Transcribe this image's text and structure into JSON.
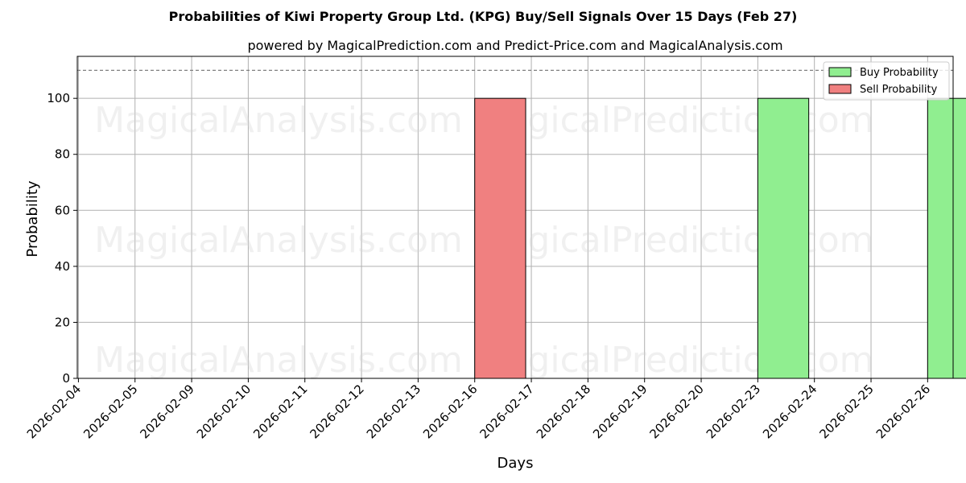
{
  "chart_data": {
    "type": "bar",
    "title": "Probabilities of Kiwi Property Group Ltd. (KPG) Buy/Sell Signals Over 15 Days (Feb 27)",
    "subtitle": "powered by MagicalPrediction.com and Predict-Price.com and MagicalAnalysis.com",
    "xlabel": "Days",
    "ylabel": "Probability",
    "ylim": [
      0,
      115
    ],
    "yticks": [
      0,
      20,
      40,
      60,
      80,
      100
    ],
    "threshold_line": 110,
    "grid": true,
    "legend_position": "top-right",
    "categories": [
      "2026-02-04",
      "2026-02-05",
      "2026-02-09",
      "2026-02-10",
      "2026-02-11",
      "2026-02-12",
      "2026-02-13",
      "2026-02-16",
      "2026-02-17",
      "2026-02-18",
      "2026-02-19",
      "2026-02-20",
      "2026-02-23",
      "2026-02-24",
      "2026-02-25",
      "2026-02-26"
    ],
    "series": [
      {
        "name": "Buy Probability",
        "color": "#90ee90",
        "values": [
          0,
          0,
          0,
          0,
          0,
          0,
          0,
          0,
          0,
          0,
          0,
          0,
          100,
          0,
          0,
          100
        ]
      },
      {
        "name": "Sell Probability",
        "color": "#f08080",
        "values": [
          0,
          0,
          0,
          0,
          0,
          0,
          0,
          100,
          0,
          0,
          0,
          0,
          0,
          0,
          0,
          0
        ]
      }
    ],
    "watermarks": [
      "MagicalAnalysis.com",
      "MagicalPrediction.com"
    ]
  }
}
